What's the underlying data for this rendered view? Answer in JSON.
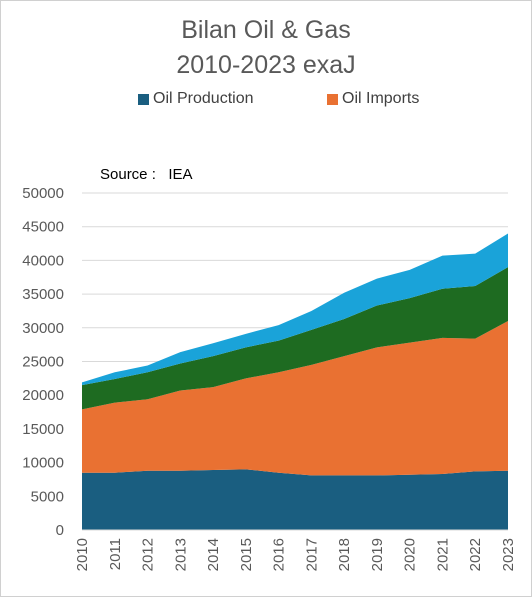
{
  "chart_data": {
    "type": "area",
    "title": "Bilan Oil & Gas",
    "subtitle": "2010-2023   exaJ",
    "annotation": "Source :   IEA",
    "legend": [
      "Oil Production",
      "Oil Imports"
    ],
    "legend_position": "top",
    "x": [
      "2010",
      "2011",
      "2012",
      "2013",
      "2014",
      "2015",
      "2016",
      "2017",
      "2018",
      "2019",
      "2020",
      "2021",
      "2022",
      "2023"
    ],
    "ylim": [
      0,
      50000
    ],
    "yticks": [
      "0",
      "5000",
      "10000",
      "15000",
      "20000",
      "25000",
      "30000",
      "35000",
      "40000",
      "45000",
      "50000"
    ],
    "stacked": true,
    "grid": true,
    "series": [
      {
        "name": "Oil Production",
        "color": "#1a5e80",
        "values": [
          8500,
          8500,
          8800,
          8800,
          8900,
          9000,
          8500,
          8100,
          8100,
          8100,
          8200,
          8300,
          8700,
          8800
        ]
      },
      {
        "name": "Oil Imports",
        "color": "#e97132",
        "values": [
          9400,
          10400,
          10600,
          11900,
          12300,
          13500,
          14900,
          16400,
          17700,
          19000,
          19600,
          20200,
          19700,
          22200
        ]
      },
      {
        "color": "#1e6b21",
        "values": [
          3600,
          3500,
          4000,
          4000,
          4600,
          4600,
          4700,
          5200,
          5500,
          6200,
          6600,
          7300,
          7800,
          8000
        ]
      },
      {
        "color": "#1aa3d9",
        "values": [
          400,
          1000,
          1000,
          1700,
          1900,
          2000,
          2300,
          2800,
          3900,
          4000,
          4200,
          4900,
          4800,
          5000
        ]
      }
    ]
  }
}
